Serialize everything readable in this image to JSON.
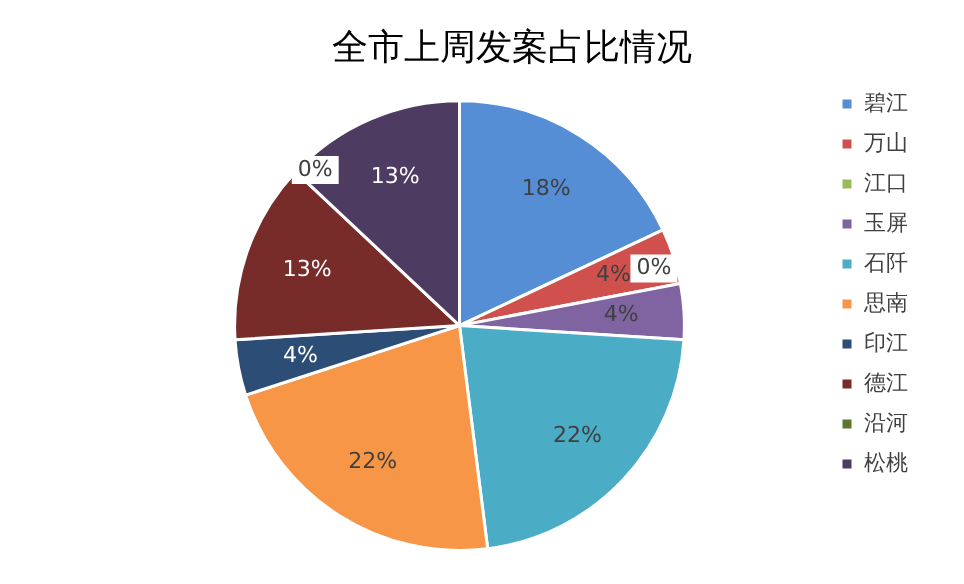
{
  "chart_data": {
    "type": "pie",
    "title": "全市上周发案占比情况",
    "categories": [
      "碧江",
      "万山",
      "江口",
      "玉屏",
      "石阡",
      "思南",
      "印江",
      "德江",
      "沿河",
      "松桃"
    ],
    "values": [
      18,
      4,
      0,
      4,
      22,
      22,
      4,
      13,
      0,
      13
    ],
    "value_labels": [
      "18%",
      "4%",
      "0%",
      "4%",
      "22%",
      "22%",
      "4%",
      "13%",
      "0%",
      "13%"
    ],
    "colors": [
      "#558ed5",
      "#d0504d",
      "#9bbb59",
      "#8064a2",
      "#4bacc6",
      "#f79646",
      "#2c4d75",
      "#772c2a",
      "#5f7530",
      "#4d3b62"
    ],
    "legend": "right"
  }
}
